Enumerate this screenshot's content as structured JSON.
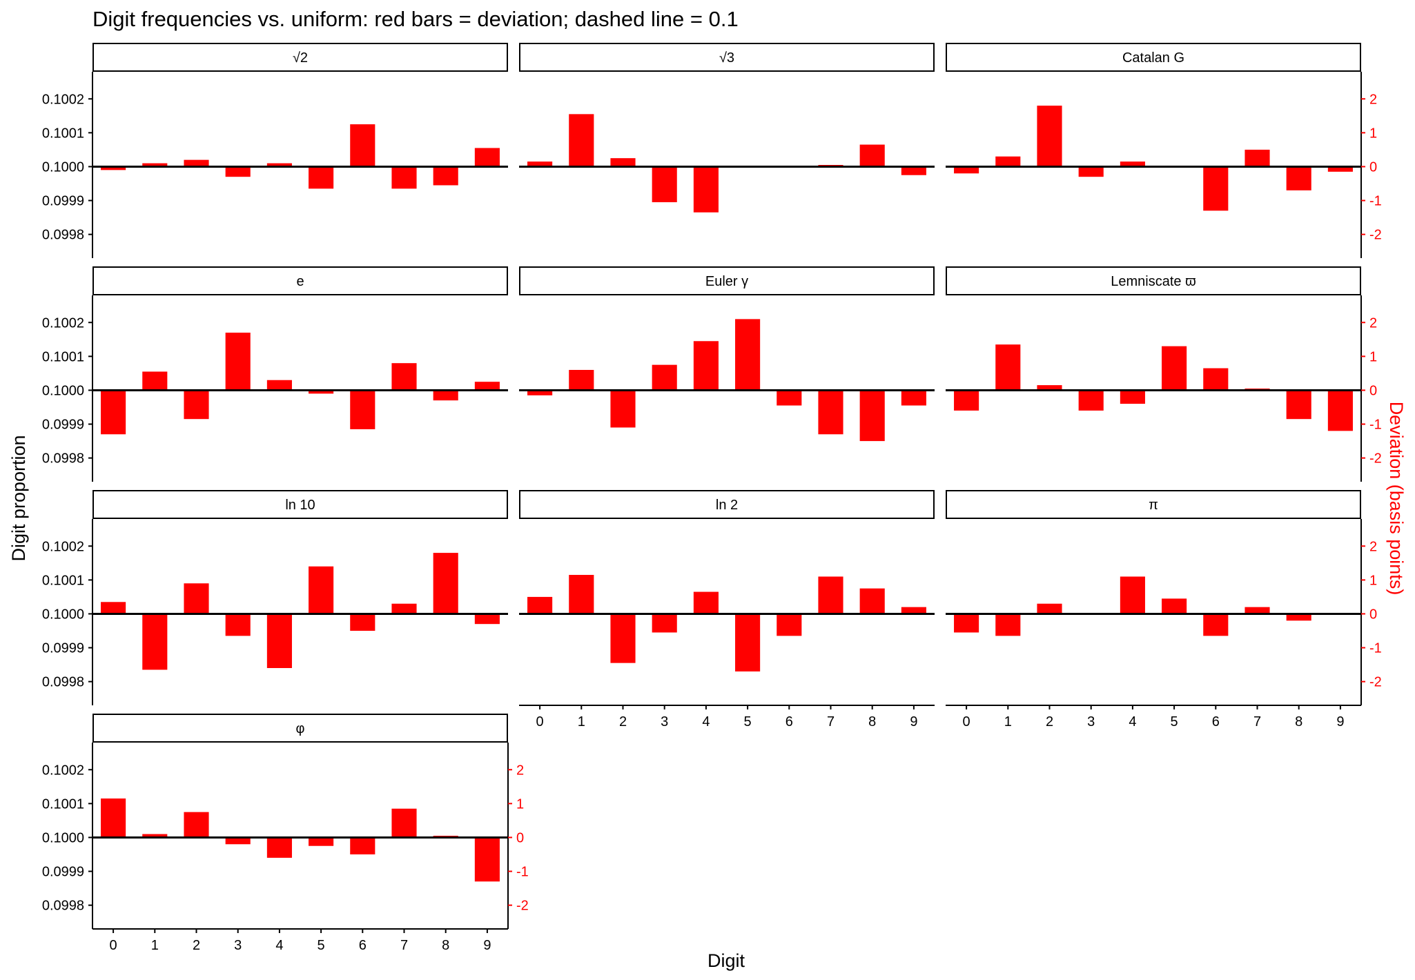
{
  "chart_data": {
    "type": "bar",
    "title": "Digit frequencies vs. uniform: red bars = deviation; dashed line = 0.1",
    "xlabel": "Digit",
    "ylabel": "Digit proportion",
    "ylabel_right": "Deviation (basis points)",
    "baseline": 0.1,
    "ylim": [
      0.09973,
      0.10028
    ],
    "ylim_right": [
      -2.7,
      2.8
    ],
    "yticks": [
      "0.0998",
      "0.0999",
      "0.1000",
      "0.1001",
      "0.1002"
    ],
    "yticks_right": [
      "-2",
      "-1",
      "0",
      "1",
      "2"
    ],
    "categories": [
      "0",
      "1",
      "2",
      "3",
      "4",
      "5",
      "6",
      "7",
      "8",
      "9"
    ],
    "bar_color": "#ff0000",
    "panels": [
      {
        "name": "√2",
        "values": [
          -0.1,
          0.1,
          0.2,
          -0.3,
          0.1,
          -0.65,
          1.25,
          -0.65,
          -0.55,
          0.55
        ]
      },
      {
        "name": "√3",
        "values": [
          0.15,
          1.55,
          0.25,
          -1.05,
          -1.35,
          0.0,
          0.0,
          0.05,
          0.65,
          -0.25
        ]
      },
      {
        "name": "Catalan G",
        "values": [
          -0.2,
          0.3,
          1.8,
          -0.3,
          0.15,
          0.0,
          -1.3,
          0.5,
          -0.7,
          -0.15
        ]
      },
      {
        "name": "e",
        "values": [
          -1.3,
          0.55,
          -0.85,
          1.7,
          0.3,
          -0.1,
          -1.15,
          0.8,
          -0.3,
          0.25
        ]
      },
      {
        "name": "Euler γ",
        "values": [
          -0.15,
          0.6,
          -1.1,
          0.75,
          1.45,
          2.1,
          -0.45,
          -1.3,
          -1.5,
          -0.45
        ]
      },
      {
        "name": "Lemniscate ϖ",
        "values": [
          -0.6,
          1.35,
          0.15,
          -0.6,
          -0.4,
          1.3,
          0.65,
          0.05,
          -0.85,
          -1.2
        ]
      },
      {
        "name": "ln 10",
        "values": [
          0.35,
          -1.65,
          0.9,
          -0.65,
          -1.6,
          1.4,
          -0.5,
          0.3,
          1.8,
          -0.3
        ]
      },
      {
        "name": "ln 2",
        "values": [
          0.5,
          1.15,
          -1.45,
          -0.55,
          0.65,
          -1.7,
          -0.65,
          1.1,
          0.75,
          0.2
        ]
      },
      {
        "name": "π",
        "values": [
          -0.55,
          -0.65,
          0.3,
          0.0,
          1.1,
          0.45,
          -0.65,
          0.2,
          -0.2,
          0.0
        ]
      },
      {
        "name": "φ",
        "values": [
          1.15,
          0.1,
          0.75,
          -0.2,
          -0.6,
          -0.25,
          -0.5,
          0.85,
          0.05,
          -1.3
        ]
      }
    ]
  }
}
